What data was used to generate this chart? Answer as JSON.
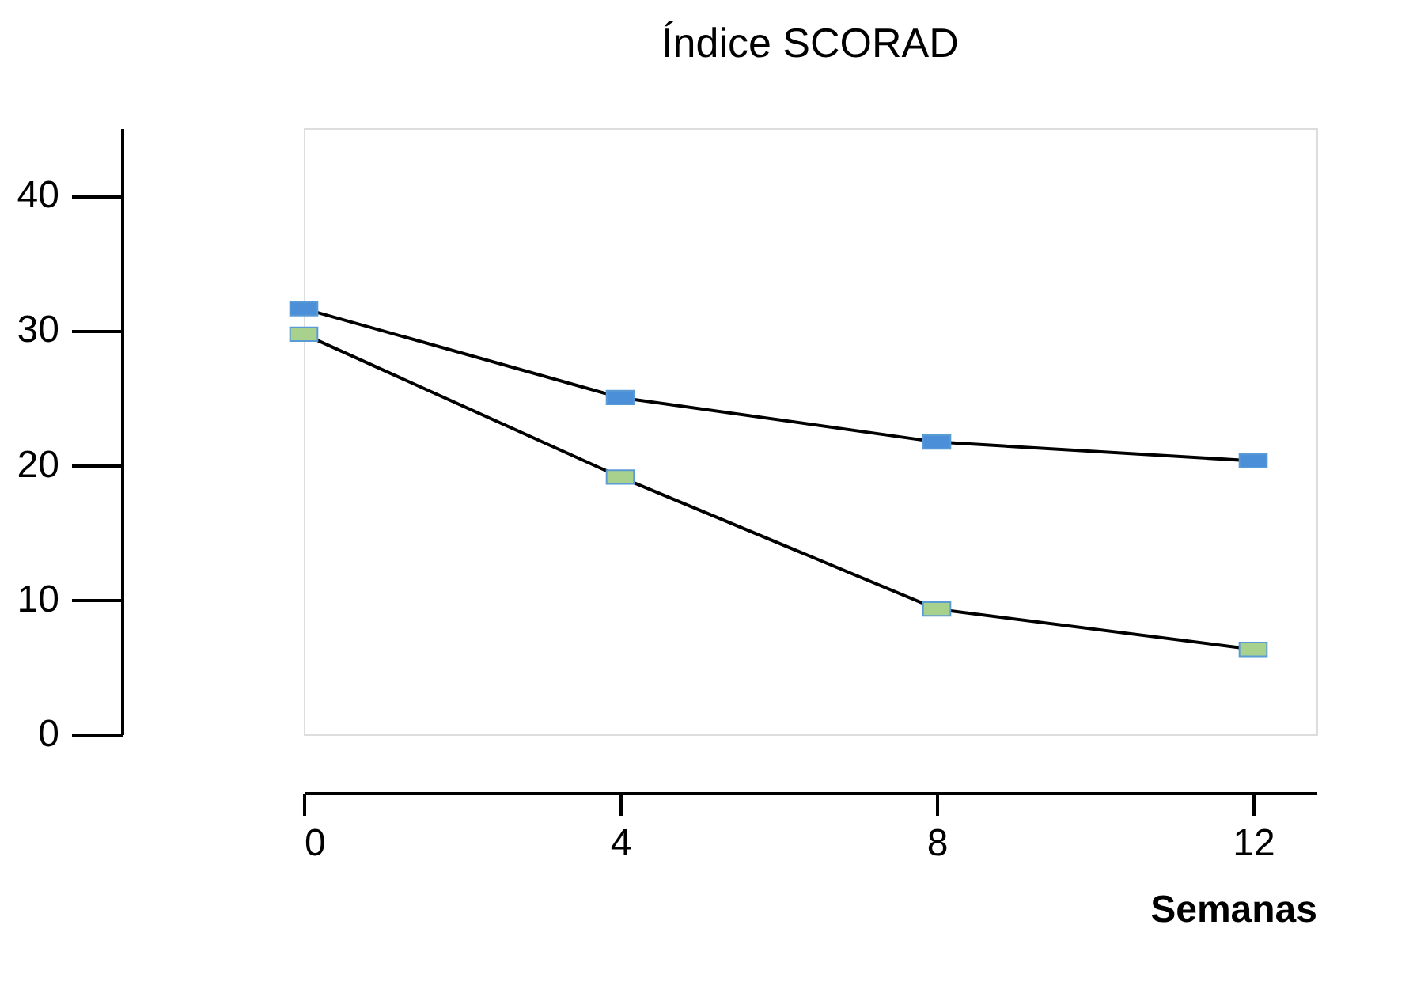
{
  "chart_data": {
    "type": "line",
    "title": "Índice SCORAD",
    "xlabel": "Semanas",
    "x": [
      0,
      4,
      8,
      12
    ],
    "series": [
      {
        "color": "#4a8fd8",
        "values": [
          31.6,
          25.0,
          21.7,
          20.3
        ]
      },
      {
        "color": "#a9d18e",
        "values": [
          29.7,
          19.1,
          9.3,
          6.3
        ]
      }
    ],
    "xlim": [
      0,
      12.8
    ],
    "xticks": [
      0,
      4,
      8,
      12
    ],
    "ylim": [
      0,
      45
    ],
    "yticks": [
      0,
      10,
      20,
      30,
      40
    ],
    "marker": "square",
    "line_style": "solid",
    "grid": false,
    "legend": false
  }
}
